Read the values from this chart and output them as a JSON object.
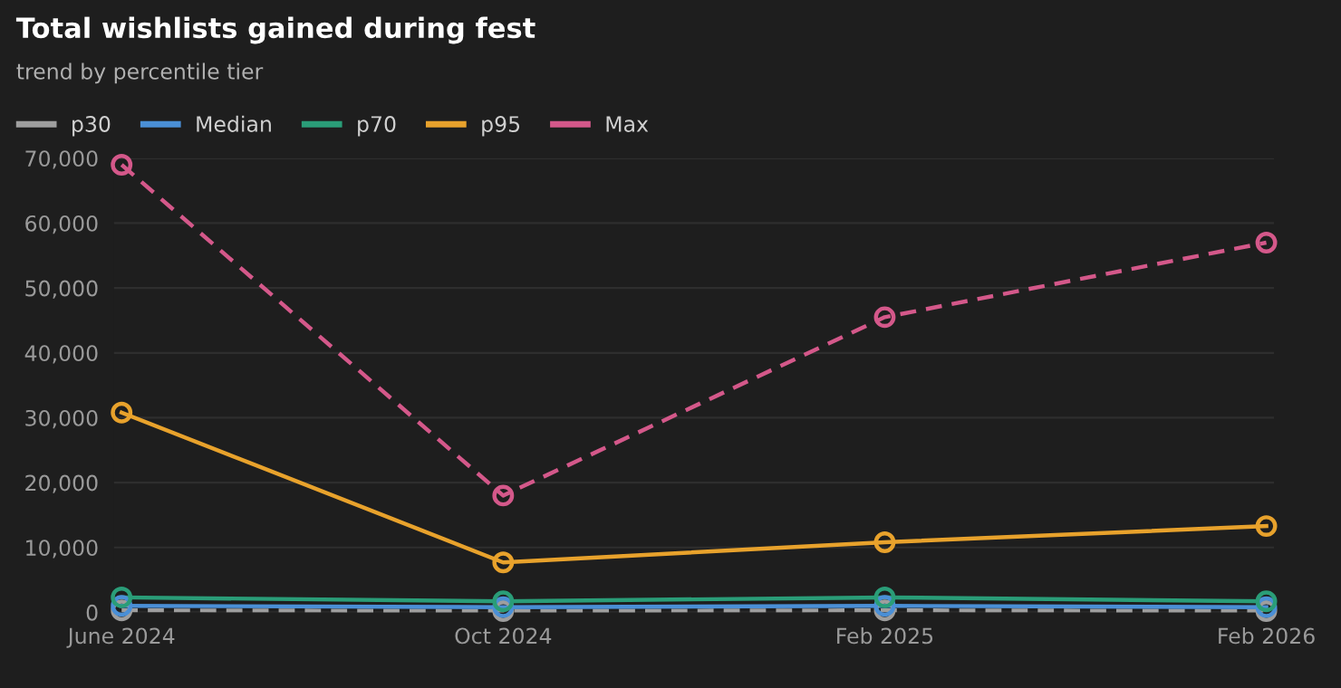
{
  "chart_data": {
    "type": "line",
    "title": "Total wishlists gained during fest",
    "subtitle": "trend by percentile tier",
    "categories": [
      "June 2024",
      "Oct 2024",
      "Feb 2025",
      "Feb 2026"
    ],
    "series": [
      {
        "name": "p30",
        "color": "#9e9e9e",
        "values": [
          300,
          200,
          300,
          200
        ],
        "line_style": "dashed"
      },
      {
        "name": "Median",
        "color": "#4a8fd6",
        "values": [
          1000,
          800,
          1000,
          800
        ],
        "line_style": "solid"
      },
      {
        "name": "p70",
        "color": "#2a9d78",
        "values": [
          2300,
          1700,
          2300,
          1700
        ],
        "line_style": "solid"
      },
      {
        "name": "p95",
        "color": "#e8a22c",
        "values": [
          30800,
          7700,
          10800,
          13300
        ],
        "line_style": "solid"
      },
      {
        "name": "Max",
        "color": "#d4588a",
        "values": [
          69000,
          18000,
          45500,
          57000
        ],
        "line_style": "dashed"
      }
    ],
    "ylim": [
      0,
      70000
    ],
    "yticks": [
      {
        "value": 0,
        "label": "0"
      },
      {
        "value": 10000,
        "label": "10,000"
      },
      {
        "value": 20000,
        "label": "20,000"
      },
      {
        "value": 30000,
        "label": "30,000"
      },
      {
        "value": 40000,
        "label": "40,000"
      },
      {
        "value": 50000,
        "label": "50,000"
      },
      {
        "value": 60000,
        "label": "60,000"
      },
      {
        "value": 70000,
        "label": "70,000"
      }
    ],
    "grid": "y",
    "legend": "top left",
    "marker": "circle"
  }
}
